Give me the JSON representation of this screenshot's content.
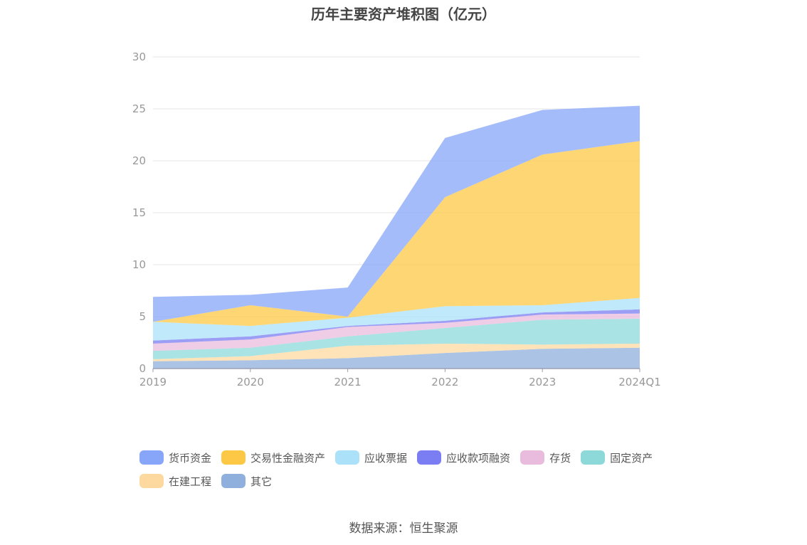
{
  "chart_data": {
    "type": "area",
    "stacked": true,
    "title": "历年主要资产堆积图（亿元）",
    "categories": [
      "2019",
      "2020",
      "2021",
      "2022",
      "2023",
      "2024Q1"
    ],
    "ylim": [
      0,
      30
    ],
    "yticks": [
      0,
      5,
      10,
      15,
      20,
      25,
      30
    ],
    "grid": true,
    "legend_position": "bottom",
    "series": [
      {
        "name": "其它",
        "color": "#8fb0dc",
        "values": [
          0.7,
          0.8,
          1.0,
          1.5,
          1.9,
          2.0
        ]
      },
      {
        "name": "在建工程",
        "color": "#fdd9a0",
        "values": [
          0.2,
          0.4,
          1.2,
          0.9,
          0.4,
          0.4
        ]
      },
      {
        "name": "固定资产",
        "color": "#8dd9d9",
        "values": [
          0.8,
          0.8,
          0.9,
          1.5,
          2.4,
          2.4
        ]
      },
      {
        "name": "存货",
        "color": "#e9bcdd",
        "values": [
          0.7,
          0.8,
          0.9,
          0.5,
          0.5,
          0.5
        ]
      },
      {
        "name": "应收款项融资",
        "color": "#7b7ef2",
        "values": [
          0.3,
          0.3,
          0.1,
          0.2,
          0.2,
          0.4
        ]
      },
      {
        "name": "应收票据",
        "color": "#abe2f9",
        "values": [
          1.8,
          1.0,
          0.8,
          1.4,
          0.7,
          1.1
        ]
      },
      {
        "name": "交易性金融资产",
        "color": "#fdc845",
        "values": [
          0.0,
          2.0,
          0.1,
          10.5,
          14.5,
          15.1
        ]
      },
      {
        "name": "货币资金",
        "color": "#87a6f9",
        "values": [
          2.4,
          1.0,
          2.8,
          5.7,
          4.3,
          3.4
        ]
      }
    ],
    "legend_order": [
      "货币资金",
      "交易性金融资产",
      "应收票据",
      "应收款项融资",
      "存货",
      "固定资产",
      "在建工程",
      "其它"
    ]
  },
  "source_text": "数据来源：恒生聚源"
}
